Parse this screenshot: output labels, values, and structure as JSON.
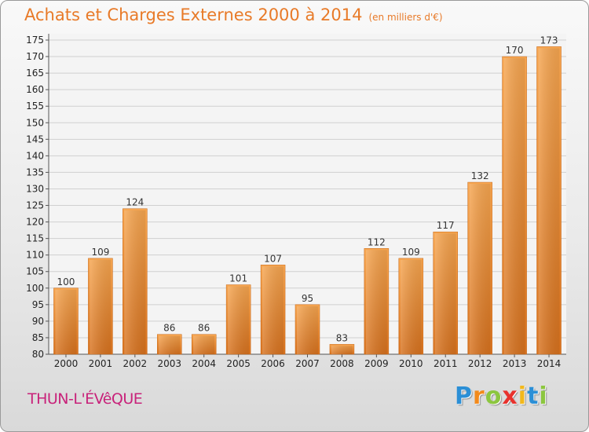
{
  "chart_data": {
    "type": "bar",
    "title": "Achats et Charges Externes 2000 à 2014",
    "subtitle": "(en milliers d'€)",
    "categories": [
      "2000",
      "2001",
      "2002",
      "2003",
      "2004",
      "2005",
      "2006",
      "2007",
      "2008",
      "2009",
      "2010",
      "2011",
      "2012",
      "2013",
      "2014"
    ],
    "values": [
      100,
      109,
      124,
      86,
      86,
      101,
      107,
      95,
      83,
      112,
      109,
      117,
      132,
      170,
      173
    ],
    "ylim": [
      80,
      175
    ],
    "yticks": [
      80,
      85,
      90,
      95,
      100,
      105,
      110,
      115,
      120,
      125,
      130,
      135,
      140,
      145,
      150,
      155,
      160,
      165,
      170,
      175
    ],
    "grid": true,
    "colors": {
      "bar_light": "#f7a04f",
      "bar_dark": "#d9741f",
      "title": "#e87a28"
    }
  },
  "footer": {
    "town": "THUN-L'ÉVêQUE",
    "logo": [
      {
        "ch": "P",
        "color": "#2b8fd6"
      },
      {
        "ch": "r",
        "color": "#f28a1c"
      },
      {
        "ch": "o",
        "color": "#8cc63f"
      },
      {
        "ch": "x",
        "color": "#e8322d"
      },
      {
        "ch": "i",
        "color": "#f2b81c"
      },
      {
        "ch": "t",
        "color": "#2b8fd6"
      },
      {
        "ch": "i",
        "color": "#8cc63f"
      }
    ]
  }
}
